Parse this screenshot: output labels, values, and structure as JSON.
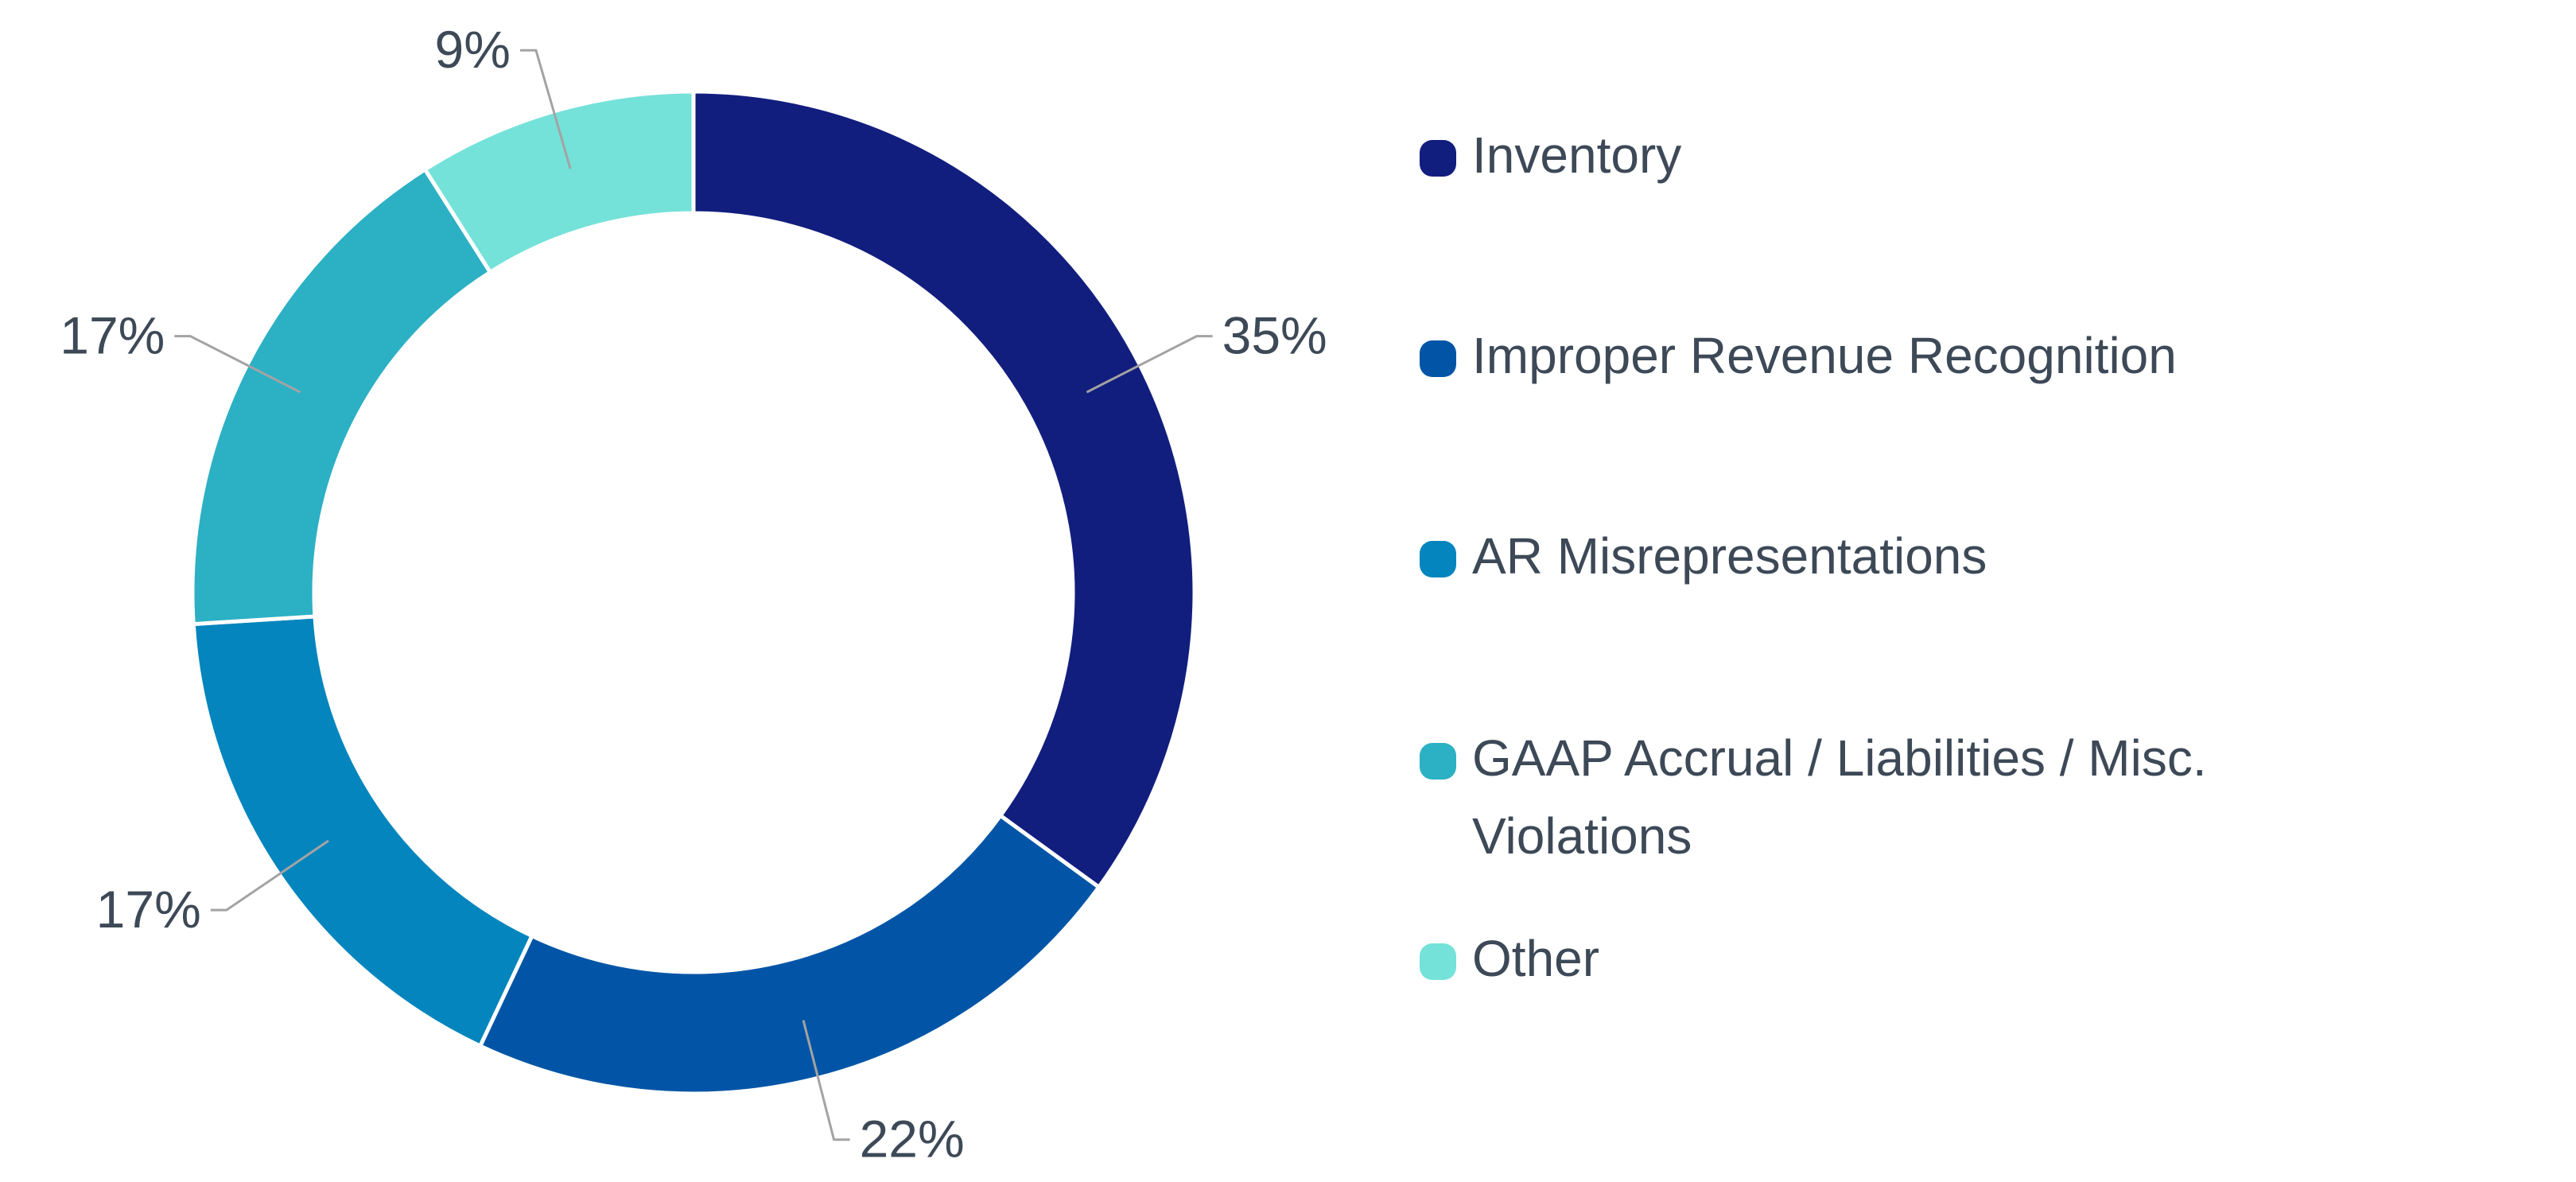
{
  "chart_data": {
    "type": "pie",
    "title": "",
    "series": [
      {
        "name": "Inventory",
        "value": 35,
        "label": "35%",
        "color": "#121e7e"
      },
      {
        "name": "Improper Revenue Recognition",
        "value": 22,
        "label": "22%",
        "color": "#0255a6"
      },
      {
        "name": "AR Misrepresentations",
        "value": 17,
        "label": "17%",
        "color": "#0485bd"
      },
      {
        "name": "GAAP Accrual / Liabilities / Misc. Violations",
        "value": 17,
        "label": "17%",
        "color": "#2cb0c4"
      },
      {
        "name": "Other",
        "value": 9,
        "label": "9%",
        "color": "#74e2d9"
      }
    ],
    "legend_position": "right",
    "donut": true
  },
  "legend": {
    "items": [
      {
        "label": "Inventory",
        "color": "#121e7e"
      },
      {
        "label": "Improper Revenue Recognition",
        "color": "#0255a6"
      },
      {
        "label": "AR Misrepresentations",
        "color": "#0485bd"
      },
      {
        "label": "GAAP Accrual / Liabilities / Misc. Violations",
        "color": "#2cb0c4"
      },
      {
        "label": "Other",
        "color": "#74e2d9"
      }
    ]
  },
  "colors": {
    "label_text": "#3d4957",
    "leader_line": "#a3a3a3",
    "separator": "#ffffff"
  }
}
